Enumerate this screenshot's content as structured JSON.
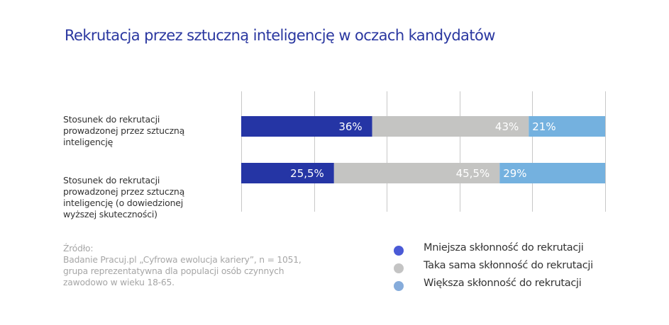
{
  "chart_data": {
    "type": "bar",
    "orientation": "horizontal",
    "stacked": true,
    "title": "Rekrutacja przez sztuczną inteligencję w oczach kandydatów",
    "categories": [
      "Stosunek do rekrutacji prowadzonej przez sztuczną inteligencję",
      "Stosunek do rekrutacji prowadzonej przez sztuczną inteligencję (o dowiedzionej wyższej skuteczności)"
    ],
    "category_lines": [
      [
        "Stosunek do rekrutacji",
        "prowadzonej przez sztuczną",
        "inteligencję"
      ],
      [
        "Stosunek do rekrutacji",
        "prowadzonej przez sztuczną",
        "inteligencję (o dowiedzionej",
        "wyższej skuteczności)"
      ]
    ],
    "series": [
      {
        "name": "Mniejsza skłonność do rekrutacji",
        "values": [
          36,
          25.5
        ],
        "labels": [
          "36%",
          "25,5%"
        ],
        "color": "#2535a5",
        "legend_color": "#4a5ad6"
      },
      {
        "name": "Taka sama skłonność do rekrutacji",
        "values": [
          43,
          45.5
        ],
        "labels": [
          "43%",
          "45,5%"
        ],
        "color": "#c4c4c2",
        "legend_color": "#c4c4c4"
      },
      {
        "name": "Większa skłonność do rekrutacji",
        "values": [
          21,
          29
        ],
        "labels": [
          "21%",
          "29%"
        ],
        "color": "#74b1df",
        "legend_color": "#86acdb"
      }
    ],
    "xlim": [
      0,
      100
    ],
    "grid": true,
    "grid_step": 20,
    "legend_position": "bottom-right"
  },
  "source": {
    "lines": [
      "Źródło:",
      "Badanie Pracuj.pl „Cyfrowa ewolucja kariery”, n = 1051,",
      "grupa reprezentatywna dla populacji osób czynnych",
      "zawodowo w wieku 18-65."
    ]
  },
  "colors": {
    "title": "#2a37a0",
    "grid": "#c8c8c8",
    "bar_label": "#ffffff"
  }
}
